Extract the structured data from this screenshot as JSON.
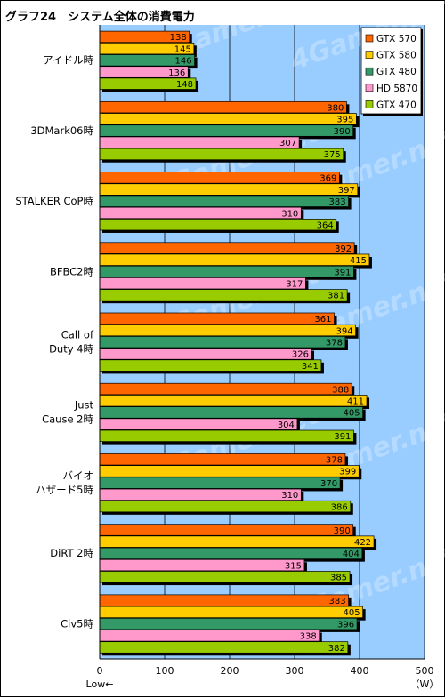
{
  "chart_data": {
    "type": "bar",
    "orientation": "horizontal",
    "title": "グラフ24　システム全体の消費電力",
    "categories": [
      "アイドル時",
      "3DMark06時",
      "STALKER CoP時",
      "BFBC2時",
      "Call of Duty 4時",
      "Just Cause 2時",
      "バイオハザード5時",
      "DiRT 2時",
      "Civ5時"
    ],
    "category_lines": [
      [
        "アイドル時"
      ],
      [
        "3DMark06時"
      ],
      [
        "STALKER CoP時"
      ],
      [
        "BFBC2時"
      ],
      [
        "Call of",
        "Duty 4時"
      ],
      [
        "Just",
        "Cause 2時"
      ],
      [
        "バイオ",
        "ハザード5時"
      ],
      [
        "DiRT 2時"
      ],
      [
        "Civ5時"
      ]
    ],
    "series": [
      {
        "name": "GTX 570",
        "color": "#ff6600",
        "values": [
          138,
          380,
          369,
          392,
          361,
          388,
          378,
          390,
          383
        ]
      },
      {
        "name": "GTX 580",
        "color": "#ffcc00",
        "values": [
          145,
          395,
          397,
          415,
          394,
          411,
          399,
          422,
          405
        ]
      },
      {
        "name": "GTX 480",
        "color": "#339966",
        "values": [
          146,
          390,
          383,
          391,
          378,
          405,
          370,
          404,
          396
        ]
      },
      {
        "name": "HD 5870",
        "color": "#ff99cc",
        "values": [
          136,
          307,
          310,
          317,
          326,
          304,
          310,
          315,
          338
        ]
      },
      {
        "name": "GTX 470",
        "color": "#99cc00",
        "values": [
          148,
          375,
          364,
          381,
          341,
          391,
          386,
          385,
          382
        ]
      }
    ],
    "xlim": [
      0,
      500
    ],
    "xticks": [
      0,
      100,
      200,
      300,
      400,
      500
    ],
    "xlabel_left": "Low←",
    "unit_label": "（W）",
    "watermark": "4Gamer.net",
    "legend_position": "top-right",
    "grid": true
  }
}
